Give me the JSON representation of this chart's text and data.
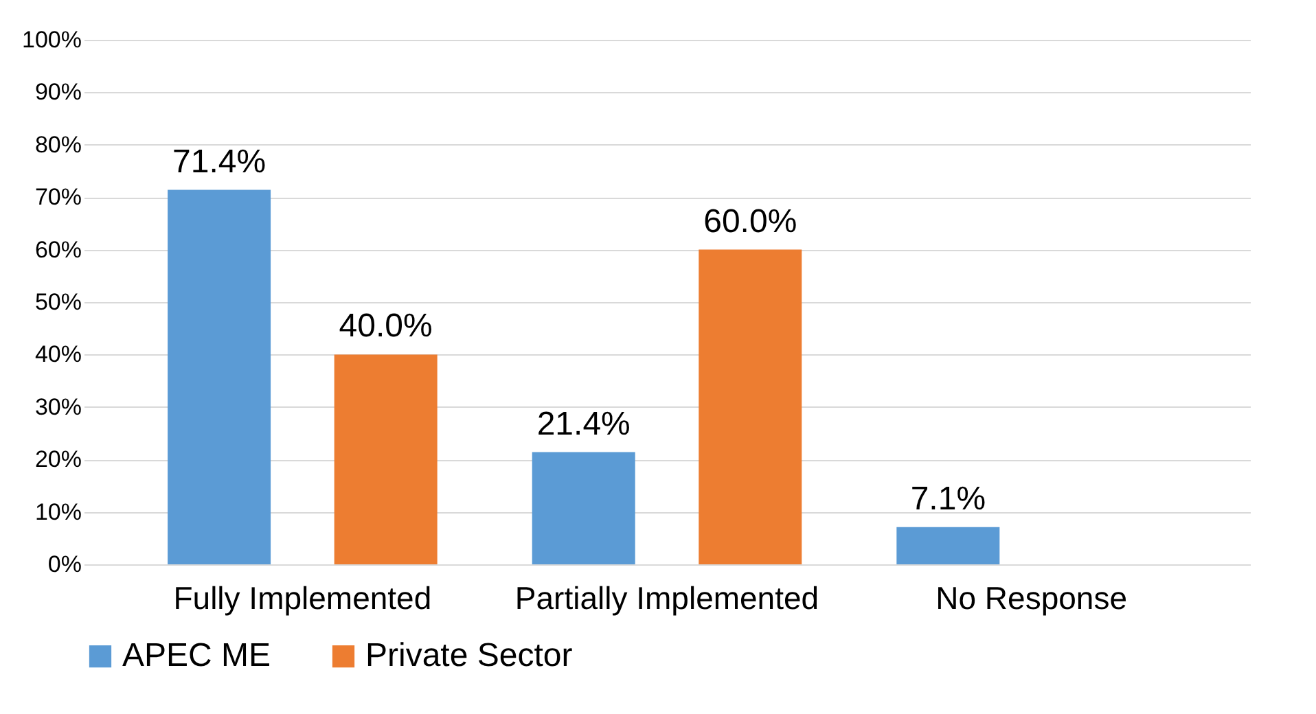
{
  "chart_data": {
    "type": "bar",
    "categories": [
      "Fully Implemented",
      "Partially Implemented",
      "No Response"
    ],
    "series": [
      {
        "name": "APEC ME",
        "color": "#5b9bd5",
        "values": [
          71.4,
          21.4,
          7.1
        ],
        "value_labels": [
          "71.4%",
          "21.4%",
          "7.1%"
        ]
      },
      {
        "name": "Private Sector",
        "color": "#ed7d31",
        "values": [
          40.0,
          60.0,
          null
        ],
        "value_labels": [
          "40.0%",
          "60.0%",
          null
        ]
      }
    ],
    "ylim": [
      0,
      100
    ],
    "yticks": [
      {
        "value": 0,
        "label": "0%"
      },
      {
        "value": 10,
        "label": "10%"
      },
      {
        "value": 20,
        "label": "20%"
      },
      {
        "value": 30,
        "label": "30%"
      },
      {
        "value": 40,
        "label": "40%"
      },
      {
        "value": 50,
        "label": "50%"
      },
      {
        "value": 60,
        "label": "60%"
      },
      {
        "value": 70,
        "label": "70%"
      },
      {
        "value": 80,
        "label": "80%"
      },
      {
        "value": 90,
        "label": "90%"
      },
      {
        "value": 100,
        "label": "100%"
      }
    ],
    "grid": "y",
    "legend": "bottom"
  }
}
